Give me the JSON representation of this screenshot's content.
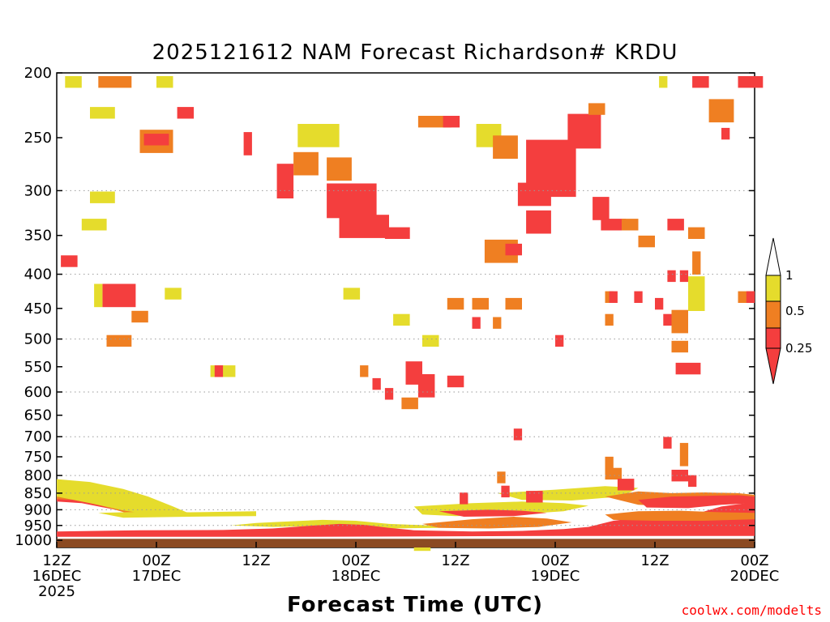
{
  "chart_data": {
    "type": "heatmap",
    "title": "2025121612 NAM Forecast Richardson# KRDU",
    "xlabel": "Forecast Time (UTC)",
    "ylabel": "",
    "credit": "coolwx.com/modelts",
    "x_ticks": [
      {
        "hour": 0,
        "line1": "12Z",
        "line2": "16DEC",
        "line3": "2025"
      },
      {
        "hour": 12,
        "line1": "00Z",
        "line2": "17DEC",
        "line3": ""
      },
      {
        "hour": 24,
        "line1": "12Z",
        "line2": "",
        "line3": ""
      },
      {
        "hour": 36,
        "line1": "00Z",
        "line2": "18DEC",
        "line3": ""
      },
      {
        "hour": 48,
        "line1": "12Z",
        "line2": "",
        "line3": ""
      },
      {
        "hour": 60,
        "line1": "00Z",
        "line2": "19DEC",
        "line3": ""
      },
      {
        "hour": 72,
        "line1": "12Z",
        "line2": "",
        "line3": ""
      },
      {
        "hour": 84,
        "line1": "00Z",
        "line2": "20DEC",
        "line3": ""
      }
    ],
    "xlim": [
      0,
      84
    ],
    "y_ticks": [
      200,
      250,
      300,
      350,
      400,
      450,
      500,
      550,
      600,
      650,
      700,
      750,
      800,
      850,
      900,
      950,
      1000
    ],
    "ylim": [
      200,
      1000
    ],
    "y_scale": "log-pressure",
    "dotted_gridlines": [
      300,
      400,
      500,
      600,
      700,
      800,
      850,
      900,
      950
    ],
    "legend": {
      "labels": [
        "1",
        "0.5",
        "0.25"
      ],
      "bins": [
        {
          "range": "0.5-1",
          "color": "#e5dc2c"
        },
        {
          "range": "0.25-0.5",
          "color": "#ef7f22"
        },
        {
          "range": "<0.25",
          "color": "#f43e3e"
        }
      ],
      "top_color": "#ffffff"
    },
    "colors": {
      "red": "#f43e3e",
      "orange": "#ef7f22",
      "yellow": "#e5dc2c",
      "ground": "#8b4a22"
    },
    "ground_level_hpa": 995,
    "cells": [
      {
        "t": 1.5,
        "p": 205,
        "w": 2,
        "h": 1,
        "c": "yellow"
      },
      {
        "t": 5.5,
        "p": 205,
        "w": 4,
        "h": 1,
        "c": "orange"
      },
      {
        "t": 12.5,
        "p": 205,
        "w": 2,
        "h": 1,
        "c": "yellow"
      },
      {
        "t": 4.5,
        "p": 228,
        "w": 3,
        "h": 1,
        "c": "yellow"
      },
      {
        "t": 10.5,
        "p": 250,
        "w": 4,
        "h": 2,
        "c": "orange"
      },
      {
        "t": 11,
        "p": 250,
        "w": 3,
        "h": 1,
        "c": "red"
      },
      {
        "t": 15,
        "p": 228,
        "w": 2,
        "h": 1,
        "c": "red"
      },
      {
        "t": 23,
        "p": 252,
        "w": 1,
        "h": 2,
        "c": "red"
      },
      {
        "t": 27,
        "p": 285,
        "w": 2,
        "h": 3,
        "c": "red"
      },
      {
        "t": 29,
        "p": 270,
        "w": 3,
        "h": 2,
        "c": "orange"
      },
      {
        "t": 29.5,
        "p": 245,
        "w": 5,
        "h": 2,
        "c": "yellow"
      },
      {
        "t": 33,
        "p": 275,
        "w": 3,
        "h": 2,
        "c": "orange"
      },
      {
        "t": 33,
        "p": 305,
        "w": 6,
        "h": 3,
        "c": "red"
      },
      {
        "t": 34.5,
        "p": 335,
        "w": 6,
        "h": 2,
        "c": "red"
      },
      {
        "t": 40,
        "p": 345,
        "w": 3,
        "h": 1,
        "c": "red"
      },
      {
        "t": 44,
        "p": 235,
        "w": 4,
        "h": 1,
        "c": "orange"
      },
      {
        "t": 47,
        "p": 235,
        "w": 2,
        "h": 1,
        "c": "red"
      },
      {
        "t": 51,
        "p": 245,
        "w": 3,
        "h": 2,
        "c": "yellow"
      },
      {
        "t": 53,
        "p": 255,
        "w": 3,
        "h": 2,
        "c": "orange"
      },
      {
        "t": 57,
        "p": 270,
        "w": 6,
        "h": 5,
        "c": "red"
      },
      {
        "t": 62,
        "p": 240,
        "w": 4,
        "h": 3,
        "c": "red"
      },
      {
        "t": 64.5,
        "p": 225,
        "w": 2,
        "h": 1,
        "c": "orange"
      },
      {
        "t": 56,
        "p": 300,
        "w": 4,
        "h": 2,
        "c": "red"
      },
      {
        "t": 57,
        "p": 330,
        "w": 3,
        "h": 2,
        "c": "red"
      },
      {
        "t": 52,
        "p": 365,
        "w": 4,
        "h": 2,
        "c": "orange"
      },
      {
        "t": 54.5,
        "p": 365,
        "w": 2,
        "h": 1,
        "c": "red"
      },
      {
        "t": 65,
        "p": 315,
        "w": 2,
        "h": 2,
        "c": "red"
      },
      {
        "t": 66,
        "p": 335,
        "w": 3,
        "h": 1,
        "c": "red"
      },
      {
        "t": 68.5,
        "p": 335,
        "w": 2,
        "h": 1,
        "c": "orange"
      },
      {
        "t": 70.5,
        "p": 355,
        "w": 2,
        "h": 1,
        "c": "orange"
      },
      {
        "t": 74,
        "p": 335,
        "w": 2,
        "h": 1,
        "c": "red"
      },
      {
        "t": 76.5,
        "p": 345,
        "w": 2,
        "h": 1,
        "c": "orange"
      },
      {
        "t": 79,
        "p": 225,
        "w": 3,
        "h": 2,
        "c": "orange"
      },
      {
        "t": 80.5,
        "p": 245,
        "w": 1,
        "h": 1,
        "c": "red"
      },
      {
        "t": 82.5,
        "p": 205,
        "w": 3,
        "h": 1,
        "c": "red"
      },
      {
        "t": 77,
        "p": 205,
        "w": 2,
        "h": 1,
        "c": "red"
      },
      {
        "t": 73,
        "p": 205,
        "w": 1,
        "h": 1,
        "c": "yellow"
      },
      {
        "t": 1,
        "p": 380,
        "w": 2,
        "h": 1,
        "c": "red"
      },
      {
        "t": 6,
        "p": 425,
        "w": 4,
        "h": 2,
        "c": "red"
      },
      {
        "t": 5,
        "p": 425,
        "w": 1,
        "h": 2,
        "c": "yellow"
      },
      {
        "t": 9.5,
        "p": 460,
        "w": 2,
        "h": 1,
        "c": "orange"
      },
      {
        "t": 6.5,
        "p": 500,
        "w": 3,
        "h": 1,
        "c": "orange"
      },
      {
        "t": 4.5,
        "p": 305,
        "w": 3,
        "h": 1,
        "c": "yellow"
      },
      {
        "t": 3.5,
        "p": 335,
        "w": 3,
        "h": 1,
        "c": "yellow"
      },
      {
        "t": 13.5,
        "p": 425,
        "w": 2,
        "h": 1,
        "c": "yellow"
      },
      {
        "t": 19,
        "p": 555,
        "w": 3,
        "h": 1,
        "c": "yellow"
      },
      {
        "t": 19.5,
        "p": 555,
        "w": 1,
        "h": 1,
        "c": "red"
      },
      {
        "t": 35,
        "p": 425,
        "w": 2,
        "h": 1,
        "c": "yellow"
      },
      {
        "t": 37,
        "p": 555,
        "w": 1,
        "h": 1,
        "c": "orange"
      },
      {
        "t": 38.5,
        "p": 580,
        "w": 1,
        "h": 1,
        "c": "red"
      },
      {
        "t": 40,
        "p": 600,
        "w": 1,
        "h": 1,
        "c": "red"
      },
      {
        "t": 42.5,
        "p": 555,
        "w": 2,
        "h": 2,
        "c": "red"
      },
      {
        "t": 44,
        "p": 580,
        "w": 2,
        "h": 2,
        "c": "red"
      },
      {
        "t": 42,
        "p": 620,
        "w": 2,
        "h": 1,
        "c": "orange"
      },
      {
        "t": 44.5,
        "p": 500,
        "w": 2,
        "h": 1,
        "c": "yellow"
      },
      {
        "t": 41,
        "p": 465,
        "w": 2,
        "h": 1,
        "c": "yellow"
      },
      {
        "t": 47.5,
        "p": 575,
        "w": 1,
        "h": 1,
        "c": "red"
      },
      {
        "t": 48.5,
        "p": 575,
        "w": 1,
        "h": 1,
        "c": "red"
      },
      {
        "t": 47.5,
        "p": 440,
        "w": 2,
        "h": 1,
        "c": "orange"
      },
      {
        "t": 50.5,
        "p": 440,
        "w": 2,
        "h": 1,
        "c": "orange"
      },
      {
        "t": 50.5,
        "p": 470,
        "w": 1,
        "h": 1,
        "c": "red"
      },
      {
        "t": 54.5,
        "p": 440,
        "w": 2,
        "h": 1,
        "c": "orange"
      },
      {
        "t": 53,
        "p": 470,
        "w": 1,
        "h": 1,
        "c": "orange"
      },
      {
        "t": 60.5,
        "p": 500,
        "w": 1,
        "h": 1,
        "c": "red"
      },
      {
        "t": 66.5,
        "p": 430,
        "w": 1,
        "h": 1,
        "c": "orange"
      },
      {
        "t": 66.5,
        "p": 465,
        "w": 1,
        "h": 1,
        "c": "orange"
      },
      {
        "t": 67,
        "p": 430,
        "w": 1,
        "h": 1,
        "c": "red"
      },
      {
        "t": 70,
        "p": 430,
        "w": 1,
        "h": 1,
        "c": "red"
      },
      {
        "t": 72.5,
        "p": 440,
        "w": 1,
        "h": 1,
        "c": "red"
      },
      {
        "t": 73.5,
        "p": 465,
        "w": 1,
        "h": 1,
        "c": "red"
      },
      {
        "t": 74.5,
        "p": 465,
        "w": 2,
        "h": 2,
        "c": "orange"
      },
      {
        "t": 74.5,
        "p": 510,
        "w": 2,
        "h": 1,
        "c": "orange"
      },
      {
        "t": 75,
        "p": 550,
        "w": 3,
        "h": 1,
        "c": "red"
      },
      {
        "t": 74,
        "p": 400,
        "w": 1,
        "h": 1,
        "c": "red"
      },
      {
        "t": 75.5,
        "p": 400,
        "w": 1,
        "h": 1,
        "c": "red"
      },
      {
        "t": 76.5,
        "p": 420,
        "w": 2,
        "h": 3,
        "c": "yellow"
      },
      {
        "t": 77,
        "p": 380,
        "w": 1,
        "h": 2,
        "c": "orange"
      },
      {
        "t": 82.5,
        "p": 430,
        "w": 2,
        "h": 1,
        "c": "orange"
      },
      {
        "t": 83.5,
        "p": 430,
        "w": 1,
        "h": 1,
        "c": "red"
      },
      {
        "t": 73.5,
        "p": 710,
        "w": 1,
        "h": 1,
        "c": "red"
      },
      {
        "t": 75.5,
        "p": 735,
        "w": 1,
        "h": 2,
        "c": "orange"
      },
      {
        "t": 74.5,
        "p": 795,
        "w": 2,
        "h": 1,
        "c": "red"
      },
      {
        "t": 76.5,
        "p": 810,
        "w": 1,
        "h": 1,
        "c": "red"
      },
      {
        "t": 66.5,
        "p": 790,
        "w": 2,
        "h": 1,
        "c": "orange"
      },
      {
        "t": 66.5,
        "p": 760,
        "w": 1,
        "h": 1,
        "c": "orange"
      },
      {
        "t": 68,
        "p": 820,
        "w": 2,
        "h": 1,
        "c": "red"
      },
      {
        "t": 54,
        "p": 840,
        "w": 1,
        "h": 1,
        "c": "red"
      },
      {
        "t": 57,
        "p": 855,
        "w": 2,
        "h": 1,
        "c": "red"
      },
      {
        "t": 49,
        "p": 860,
        "w": 1,
        "h": 1,
        "c": "red"
      },
      {
        "t": 53.5,
        "p": 800,
        "w": 1,
        "h": 1,
        "c": "orange"
      },
      {
        "t": 55.5,
        "p": 690,
        "w": 1,
        "h": 1,
        "c": "red"
      },
      {
        "t": 43.5,
        "p": 1010,
        "w": 2,
        "h": 1,
        "c": "yellow"
      }
    ],
    "bands": [
      {
        "c": "red",
        "pts": [
          [
            0,
            850
          ],
          [
            3,
            848
          ],
          [
            5,
            862
          ],
          [
            8,
            870
          ],
          [
            8,
            905
          ],
          [
            3,
            880
          ],
          [
            0,
            875
          ]
        ]
      },
      {
        "c": "orange",
        "pts": [
          [
            0,
            830
          ],
          [
            4,
            840
          ],
          [
            8,
            855
          ],
          [
            11,
            880
          ],
          [
            13,
            908
          ],
          [
            9,
            915
          ],
          [
            5,
            885
          ],
          [
            2,
            870
          ],
          [
            0,
            868
          ]
        ]
      },
      {
        "c": "yellow",
        "pts": [
          [
            0,
            810
          ],
          [
            4,
            818
          ],
          [
            8,
            838
          ],
          [
            11,
            860
          ],
          [
            14,
            890
          ],
          [
            16,
            912
          ],
          [
            12,
            918
          ],
          [
            8,
            902
          ],
          [
            4,
            880
          ],
          [
            0,
            860
          ]
        ]
      },
      {
        "c": "yellow",
        "pts": [
          [
            5,
            910
          ],
          [
            11,
            906
          ],
          [
            16,
            908
          ],
          [
            24,
            905
          ],
          [
            24,
            920
          ],
          [
            16,
            922
          ],
          [
            8,
            925
          ]
        ]
      },
      {
        "c": "yellow",
        "pts": [
          [
            21,
            950
          ],
          [
            24,
            942
          ],
          [
            27,
            938
          ],
          [
            32,
            932
          ],
          [
            36,
            935
          ],
          [
            40,
            945
          ],
          [
            45,
            950
          ],
          [
            46,
            958
          ],
          [
            40,
            960
          ],
          [
            32,
            952
          ],
          [
            26,
            955
          ]
        ]
      },
      {
        "c": "red",
        "pts": [
          [
            0,
            970
          ],
          [
            10,
            966
          ],
          [
            20,
            965
          ],
          [
            26,
            960
          ],
          [
            30,
            952
          ],
          [
            34,
            945
          ],
          [
            37,
            948
          ],
          [
            40,
            958
          ],
          [
            43,
            966
          ],
          [
            50,
            970
          ],
          [
            56,
            968
          ],
          [
            61,
            962
          ],
          [
            64,
            955
          ],
          [
            67,
            935
          ],
          [
            70,
            925
          ],
          [
            74,
            930
          ],
          [
            76,
            920
          ],
          [
            80,
            890
          ],
          [
            83,
            880
          ],
          [
            84,
            875
          ],
          [
            84,
            985
          ],
          [
            60,
            985
          ],
          [
            30,
            988
          ],
          [
            0,
            988
          ]
        ]
      },
      {
        "c": "orange",
        "pts": [
          [
            44,
            945
          ],
          [
            50,
            930
          ],
          [
            55,
            922
          ],
          [
            59,
            928
          ],
          [
            62,
            940
          ],
          [
            58,
            955
          ],
          [
            52,
            960
          ],
          [
            46,
            958
          ]
        ]
      },
      {
        "c": "yellow",
        "pts": [
          [
            43,
            890
          ],
          [
            50,
            880
          ],
          [
            56,
            875
          ],
          [
            61,
            880
          ],
          [
            64,
            888
          ],
          [
            61,
            905
          ],
          [
            55,
            915
          ],
          [
            48,
            920
          ],
          [
            44,
            915
          ]
        ]
      },
      {
        "c": "red",
        "pts": [
          [
            46,
            905
          ],
          [
            52,
            900
          ],
          [
            56,
            903
          ],
          [
            59,
            910
          ],
          [
            55,
            920
          ],
          [
            49,
            922
          ]
        ]
      },
      {
        "c": "yellow",
        "pts": [
          [
            53,
            850
          ],
          [
            60,
            840
          ],
          [
            66,
            830
          ],
          [
            70,
            835
          ],
          [
            68,
            860
          ],
          [
            62,
            872
          ],
          [
            56,
            870
          ]
        ]
      },
      {
        "c": "orange",
        "pts": [
          [
            66,
            860
          ],
          [
            70,
            845
          ],
          [
            74,
            850
          ],
          [
            78,
            848
          ],
          [
            82,
            850
          ],
          [
            84,
            855
          ],
          [
            84,
            870
          ],
          [
            80,
            880
          ],
          [
            75,
            890
          ],
          [
            70,
            885
          ]
        ]
      },
      {
        "c": "red",
        "pts": [
          [
            70,
            870
          ],
          [
            74,
            860
          ],
          [
            78,
            858
          ],
          [
            82,
            856
          ],
          [
            84,
            860
          ],
          [
            84,
            880
          ],
          [
            80,
            885
          ],
          [
            76,
            895
          ],
          [
            71,
            893
          ]
        ]
      },
      {
        "c": "orange",
        "pts": [
          [
            66,
            915
          ],
          [
            70,
            905
          ],
          [
            75,
            903
          ],
          [
            80,
            908
          ],
          [
            84,
            910
          ],
          [
            84,
            930
          ],
          [
            78,
            935
          ],
          [
            72,
            935
          ],
          [
            67,
            932
          ]
        ]
      }
    ]
  }
}
